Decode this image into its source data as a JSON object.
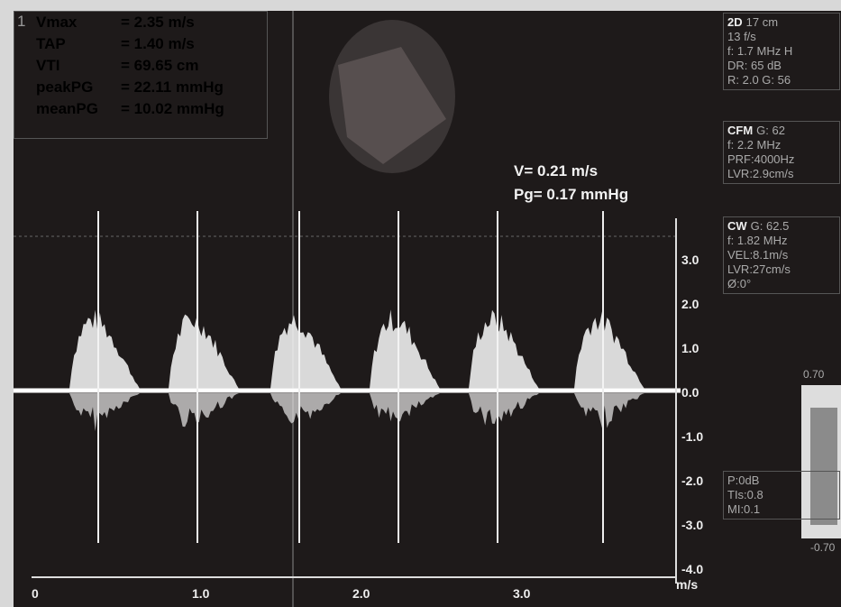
{
  "measurement_index": "1",
  "measurements": [
    {
      "label": "Vmax",
      "value": "= 2.35 m/s"
    },
    {
      "label": "TAP",
      "value": "= 1.40 m/s"
    },
    {
      "label": "VTI",
      "value": "= 69.65 cm"
    },
    {
      "label": "peakPG",
      "value": "= 22.11 mmHg"
    },
    {
      "label": "meanPG",
      "value": "= 10.02 mmHg"
    }
  ],
  "cursor": {
    "velocity": "V= 0.21 m/s",
    "gradient": "Pg= 0.17 mmHg"
  },
  "panels": [
    {
      "head": "2D",
      "lines": [
        "17 cm",
        "13 f/s",
        "f: 1.7 MHz H",
        "DR: 65 dB",
        "R: 2.0   G: 56"
      ]
    },
    {
      "head": "CFM",
      "lines": [
        "G: 62",
        "f: 2.2 MHz",
        "PRF:4000Hz",
        "LVR:2.9cm/s"
      ]
    },
    {
      "head": "CW",
      "lines": [
        "G: 62.5",
        "f: 1.82 MHz",
        "VEL:8.1m/s",
        "LVR:27cm/s",
        "Ø:0°"
      ]
    },
    {
      "head": "",
      "lines": [
        "P:0dB",
        "TIs:0.8",
        "MI:0.1"
      ]
    }
  ],
  "velocity_axis": {
    "labels": [
      "3.0",
      "2.0",
      "1.0",
      "0.0",
      "-1.0",
      "-2.0",
      "-3.0",
      "-4.0"
    ],
    "unit": "m/s"
  },
  "time_axis": {
    "labels": [
      "0",
      "1.0",
      "2.0",
      "3.0"
    ]
  },
  "colorbar": {
    "top": "0.70",
    "bottom": "-0.70"
  }
}
